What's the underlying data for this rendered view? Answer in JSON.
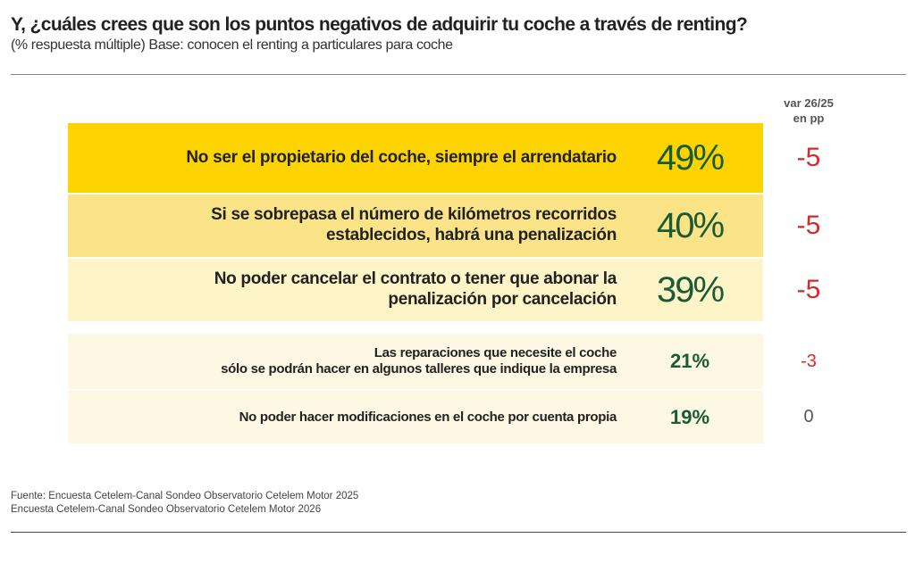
{
  "title": "Y, ¿cuáles crees que son los puntos negativos de adquirir tu coche a través de renting?",
  "subtitle": "(% respuesta múltiple) Base: conocen el renting a particulares para coche",
  "var_header_line1": "var 26/25",
  "var_header_line2": "en pp",
  "chart_data": {
    "type": "table",
    "columns": [
      "Punto negativo",
      "%",
      "var 26/25 en pp"
    ],
    "rows": [
      {
        "label_lines": [
          "No ser el propietario del coche, siempre el arrendatario"
        ],
        "value": "49%",
        "var": "-5",
        "bg": "#fdd400",
        "var_color": "#d42b2b"
      },
      {
        "label_lines": [
          "Si se sobrepasa el número de kilómetros recorridos",
          "establecidos, habrá una penalización"
        ],
        "value": "40%",
        "var": "-5",
        "bg": "#fbe387",
        "var_color": "#d42b2b"
      },
      {
        "label_lines": [
          "No poder cancelar el contrato o tener que abonar la",
          "penalización por cancelación"
        ],
        "value": "39%",
        "var": "-5",
        "bg": "#fdf4c7",
        "var_color": "#d42b2b"
      },
      {
        "label_lines": [
          "Las reparaciones que necesite el coche",
          "sólo se podrán hacer en algunos talleres que indique la empresa"
        ],
        "value": "21%",
        "var": "-3",
        "bg": "#fcf8e4",
        "var_color": "#d42b2b"
      },
      {
        "label_lines": [
          "No poder hacer modificaciones en el coche por cuenta propia"
        ],
        "value": "19%",
        "var": "0",
        "bg": "#fcf8e4",
        "var_color": "#555555"
      }
    ]
  },
  "footer_line1": "Fuente: Encuesta Cetelem-Canal Sondeo Observatorio Cetelem Motor 2025",
  "footer_line2": "Encuesta Cetelem-Canal Sondeo Observatorio Cetelem Motor 2026"
}
